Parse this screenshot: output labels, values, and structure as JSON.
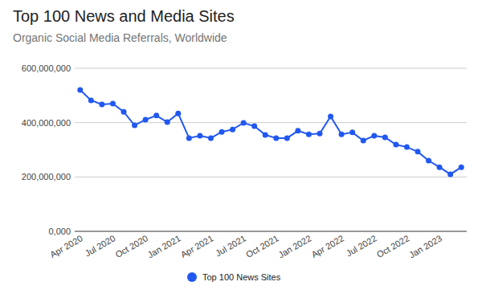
{
  "chart_data": {
    "type": "line",
    "title": "Top 100 News and Media Sites",
    "subtitle": "Organic Social Media Referrals, Worldwide",
    "categories": [
      "Apr 2020",
      null,
      null,
      "Jul 2020",
      null,
      null,
      "Oct 2020",
      null,
      null,
      "Jan 2021",
      null,
      null,
      "Apr 2021",
      null,
      null,
      "Jul 2021",
      null,
      null,
      "Oct 2021",
      null,
      null,
      "Jan 2022",
      null,
      null,
      "Apr 2022",
      null,
      null,
      "Jul 2022",
      null,
      null,
      "Oct 2022",
      null,
      null,
      "Jan 2023",
      null,
      null
    ],
    "series": [
      {
        "name": "Top 100 News Sites",
        "color": "#2158f0",
        "marker": "circle",
        "values": [
          520000000,
          482000000,
          467000000,
          470000000,
          440000000,
          390000000,
          411000000,
          426000000,
          402000000,
          434000000,
          343000000,
          352000000,
          343000000,
          366000000,
          375000000,
          399000000,
          387000000,
          355000000,
          343000000,
          343000000,
          370000000,
          357000000,
          360000000,
          423000000,
          357000000,
          364000000,
          334000000,
          352000000,
          346000000,
          319000000,
          310000000,
          293000000,
          260000000,
          236000000,
          210000000,
          236000000
        ]
      }
    ],
    "ylim": [
      0,
      600000000
    ],
    "yticks": [
      {
        "value": 0,
        "label": "0,000"
      },
      {
        "value": 200000000,
        "label": "200,000,000"
      },
      {
        "value": 400000000,
        "label": "400,000,000"
      },
      {
        "value": 600000000,
        "label": "600,000,000"
      }
    ],
    "grid": true,
    "legend": "bottom"
  }
}
